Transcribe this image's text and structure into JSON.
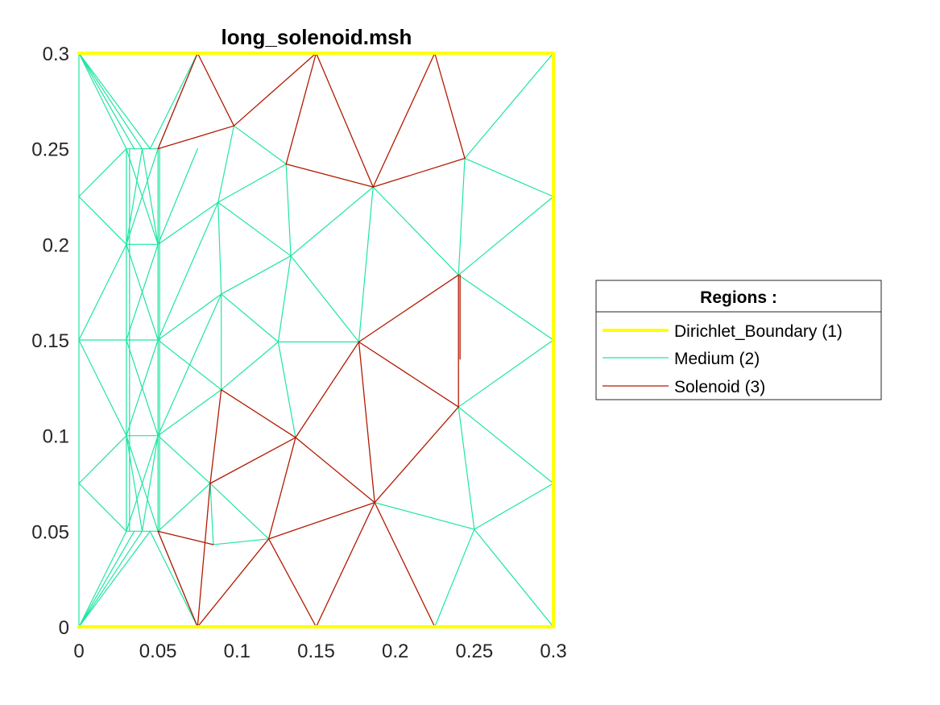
{
  "chart_data": {
    "type": "mesh",
    "title": "long_solenoid.msh",
    "xlim": [
      0,
      0.3
    ],
    "ylim": [
      0,
      0.3
    ],
    "x_ticks": [
      "0",
      "0.05",
      "0.1",
      "0.15",
      "0.2",
      "0.25",
      "0.3"
    ],
    "y_ticks": [
      "0",
      "0.05",
      "0.1",
      "0.15",
      "0.2",
      "0.25",
      "0.3"
    ],
    "grid": false,
    "legend": {
      "title": "Regions :",
      "placement": "right",
      "entries": [
        {
          "label": "Dirichlet_Boundary (1)",
          "color": "#ffff00",
          "region": "boundary"
        },
        {
          "label": "Medium (2)",
          "color": "#1ee6a0",
          "region": "medium"
        },
        {
          "label": "Solenoid (3)",
          "color": "#b21a00",
          "region": "solenoid"
        }
      ]
    },
    "regions": {
      "boundary": {
        "color": "#ffff00",
        "edges": [
          [
            0,
            0,
            0.3,
            0
          ],
          [
            0,
            0.3,
            0.3,
            0.3
          ],
          [
            0.3,
            0,
            0.3,
            0.3
          ]
        ]
      },
      "medium": {
        "color": "#1ee6a0",
        "edges": [
          [
            0,
            0,
            0,
            0.3
          ],
          [
            0,
            0.3,
            0.03,
            0.25
          ],
          [
            0,
            0.3,
            0.035,
            0.25
          ],
          [
            0,
            0.3,
            0.04,
            0.25
          ],
          [
            0,
            0.3,
            0.045,
            0.25
          ],
          [
            0,
            0.225,
            0.03,
            0.25
          ],
          [
            0,
            0.225,
            0.03,
            0.2
          ],
          [
            0,
            0.15,
            0.03,
            0.2
          ],
          [
            0,
            0.15,
            0.03,
            0.15
          ],
          [
            0,
            0.15,
            0.03,
            0.1
          ],
          [
            0,
            0.075,
            0.03,
            0.1
          ],
          [
            0,
            0.075,
            0.03,
            0.05
          ],
          [
            0,
            0,
            0.03,
            0.05
          ],
          [
            0,
            0,
            0.035,
            0.05
          ],
          [
            0,
            0,
            0.04,
            0.05
          ],
          [
            0,
            0,
            0.045,
            0.05
          ],
          [
            0.03,
            0.05,
            0.03,
            0.25
          ],
          [
            0.032,
            0.05,
            0.032,
            0.25
          ],
          [
            0.05,
            0.05,
            0.05,
            0.25
          ],
          [
            0.051,
            0.05,
            0.051,
            0.25
          ],
          [
            0.03,
            0.25,
            0.05,
            0.25
          ],
          [
            0.03,
            0.05,
            0.05,
            0.05
          ],
          [
            0.03,
            0.2,
            0.05,
            0.2
          ],
          [
            0.03,
            0.15,
            0.05,
            0.15
          ],
          [
            0.03,
            0.1,
            0.05,
            0.1
          ],
          [
            0.03,
            0.25,
            0.05,
            0.2
          ],
          [
            0.03,
            0.2,
            0.05,
            0.25
          ],
          [
            0.03,
            0.2,
            0.05,
            0.15
          ],
          [
            0.03,
            0.15,
            0.05,
            0.2
          ],
          [
            0.03,
            0.15,
            0.05,
            0.1
          ],
          [
            0.03,
            0.1,
            0.05,
            0.15
          ],
          [
            0.03,
            0.1,
            0.05,
            0.05
          ],
          [
            0.03,
            0.05,
            0.05,
            0.1
          ],
          [
            0.04,
            0.25,
            0.03,
            0.2
          ],
          [
            0.04,
            0.25,
            0.05,
            0.2
          ],
          [
            0.04,
            0.05,
            0.03,
            0.1
          ],
          [
            0.04,
            0.05,
            0.05,
            0.1
          ],
          [
            0.05,
            0.25,
            0.075,
            0.3
          ],
          [
            0.045,
            0.25,
            0.075,
            0.3
          ],
          [
            0.05,
            0.05,
            0.075,
            0
          ],
          [
            0.045,
            0.05,
            0.075,
            0
          ],
          [
            0.05,
            0.2,
            0.075,
            0.25
          ],
          [
            0.05,
            0.2,
            0.088,
            0.222
          ],
          [
            0.05,
            0.15,
            0.088,
            0.222
          ],
          [
            0.05,
            0.15,
            0.09,
            0.174
          ],
          [
            0.05,
            0.1,
            0.09,
            0.174
          ],
          [
            0.05,
            0.15,
            0.09,
            0.124
          ],
          [
            0.05,
            0.1,
            0.09,
            0.124
          ],
          [
            0.05,
            0.1,
            0.083,
            0.075
          ],
          [
            0.05,
            0.05,
            0.083,
            0.075
          ],
          [
            0.098,
            0.262,
            0.088,
            0.222
          ],
          [
            0.098,
            0.262,
            0.131,
            0.242
          ],
          [
            0.088,
            0.222,
            0.131,
            0.242
          ],
          [
            0.088,
            0.222,
            0.09,
            0.174
          ],
          [
            0.088,
            0.222,
            0.134,
            0.194
          ],
          [
            0.09,
            0.174,
            0.134,
            0.194
          ],
          [
            0.09,
            0.174,
            0.126,
            0.149
          ],
          [
            0.09,
            0.174,
            0.09,
            0.124
          ],
          [
            0.131,
            0.242,
            0.134,
            0.194
          ],
          [
            0.134,
            0.194,
            0.126,
            0.149
          ],
          [
            0.134,
            0.194,
            0.177,
            0.149
          ],
          [
            0.134,
            0.194,
            0.186,
            0.23
          ],
          [
            0.126,
            0.149,
            0.177,
            0.149
          ],
          [
            0.126,
            0.149,
            0.09,
            0.124
          ],
          [
            0.126,
            0.149,
            0.137,
            0.099
          ],
          [
            0.186,
            0.23,
            0.177,
            0.149
          ],
          [
            0.186,
            0.23,
            0.24,
            0.184
          ],
          [
            0.24,
            0.184,
            0.244,
            0.245
          ],
          [
            0.24,
            0.184,
            0.3,
            0.225
          ],
          [
            0.24,
            0.184,
            0.3,
            0.15
          ],
          [
            0.244,
            0.245,
            0.3,
            0.3
          ],
          [
            0.244,
            0.245,
            0.3,
            0.225
          ],
          [
            0.24,
            0.115,
            0.3,
            0.15
          ],
          [
            0.24,
            0.115,
            0.3,
            0.075
          ],
          [
            0.24,
            0.115,
            0.25,
            0.051
          ],
          [
            0.25,
            0.051,
            0.3,
            0.075
          ],
          [
            0.25,
            0.051,
            0.3,
            0
          ],
          [
            0.25,
            0.051,
            0.225,
            0
          ],
          [
            0.25,
            0.051,
            0.187,
            0.065
          ],
          [
            0.083,
            0.075,
            0.085,
            0.043
          ],
          [
            0.085,
            0.043,
            0.12,
            0.046
          ],
          [
            0.083,
            0.075,
            0.12,
            0.046
          ]
        ]
      },
      "solenoid": {
        "color": "#b21a00",
        "edges": [
          [
            0.075,
            0.3,
            0.05,
            0.25
          ],
          [
            0.075,
            0.3,
            0.098,
            0.262
          ],
          [
            0.05,
            0.25,
            0.098,
            0.262
          ],
          [
            0.098,
            0.262,
            0.15,
            0.3
          ],
          [
            0.15,
            0.3,
            0.131,
            0.242
          ],
          [
            0.15,
            0.3,
            0.186,
            0.23
          ],
          [
            0.131,
            0.242,
            0.186,
            0.23
          ],
          [
            0.186,
            0.23,
            0.225,
            0.3
          ],
          [
            0.225,
            0.3,
            0.244,
            0.245
          ],
          [
            0.186,
            0.23,
            0.244,
            0.245
          ],
          [
            0.24,
            0.184,
            0.24,
            0.115
          ],
          [
            0.241,
            0.184,
            0.241,
            0.14
          ],
          [
            0.24,
            0.184,
            0.177,
            0.149
          ],
          [
            0.177,
            0.149,
            0.24,
            0.115
          ],
          [
            0.177,
            0.149,
            0.137,
            0.099
          ],
          [
            0.177,
            0.149,
            0.187,
            0.065
          ],
          [
            0.24,
            0.115,
            0.187,
            0.065
          ],
          [
            0.137,
            0.099,
            0.187,
            0.065
          ],
          [
            0.137,
            0.099,
            0.09,
            0.124
          ],
          [
            0.137,
            0.099,
            0.083,
            0.075
          ],
          [
            0.137,
            0.099,
            0.12,
            0.046
          ],
          [
            0.09,
            0.124,
            0.083,
            0.075
          ],
          [
            0.187,
            0.065,
            0.12,
            0.046
          ],
          [
            0.187,
            0.065,
            0.15,
            0
          ],
          [
            0.187,
            0.065,
            0.225,
            0
          ],
          [
            0.12,
            0.046,
            0.15,
            0
          ],
          [
            0.12,
            0.046,
            0.075,
            0
          ],
          [
            0.083,
            0.075,
            0.075,
            0
          ],
          [
            0.085,
            0.043,
            0.05,
            0.05
          ],
          [
            0.05,
            0.05,
            0.075,
            0
          ]
        ]
      }
    }
  }
}
